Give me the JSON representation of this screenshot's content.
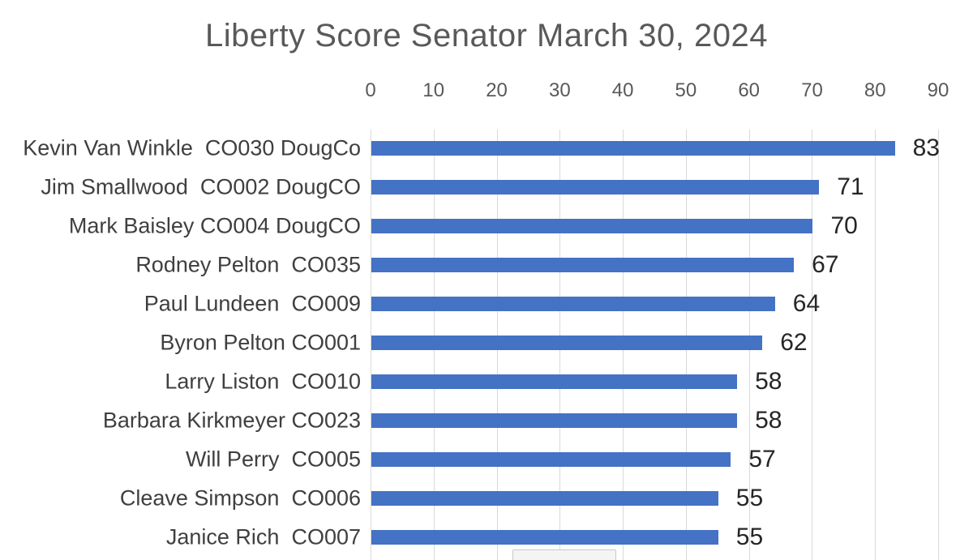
{
  "chart_data": {
    "type": "bar",
    "orientation": "horizontal",
    "title": "Liberty Score Senator March 30, 2024",
    "categories": [
      "Kevin Van Winkle  CO030 DougCo",
      "Jim Smallwood  CO002 DougCO",
      "Mark Baisley CO004 DougCO",
      "Rodney Pelton  CO035",
      "Paul Lundeen  CO009",
      "Byron Pelton CO001",
      "Larry Liston  CO010",
      "Barbara Kirkmeyer CO023",
      "Will Perry  CO005",
      "Cleave Simpson  CO006",
      "Janice Rich  CO007"
    ],
    "values": [
      83,
      71,
      70,
      67,
      64,
      62,
      58,
      58,
      57,
      55,
      55
    ],
    "value_labels": [
      "83",
      "71",
      "70",
      "67",
      "64",
      "62",
      "58",
      "58",
      "57",
      "55",
      "55"
    ],
    "x_ticks": [
      "0",
      "10",
      "20",
      "30",
      "40",
      "50",
      "60",
      "70",
      "80",
      "90"
    ],
    "xlim": [
      0,
      90
    ],
    "xlabel": "",
    "ylabel": "",
    "grid": "vertical-on",
    "legend_position": "none",
    "axis_position": "top",
    "chart_cut_off_at_bottom": true,
    "colors": {
      "bar": "#4472c4",
      "gridline": "#d9d9d9",
      "title_text": "#595959",
      "tick_text": "#595959",
      "category_text": "#3f3f3f",
      "value_text": "#262626",
      "background": "#ffffff"
    }
  }
}
